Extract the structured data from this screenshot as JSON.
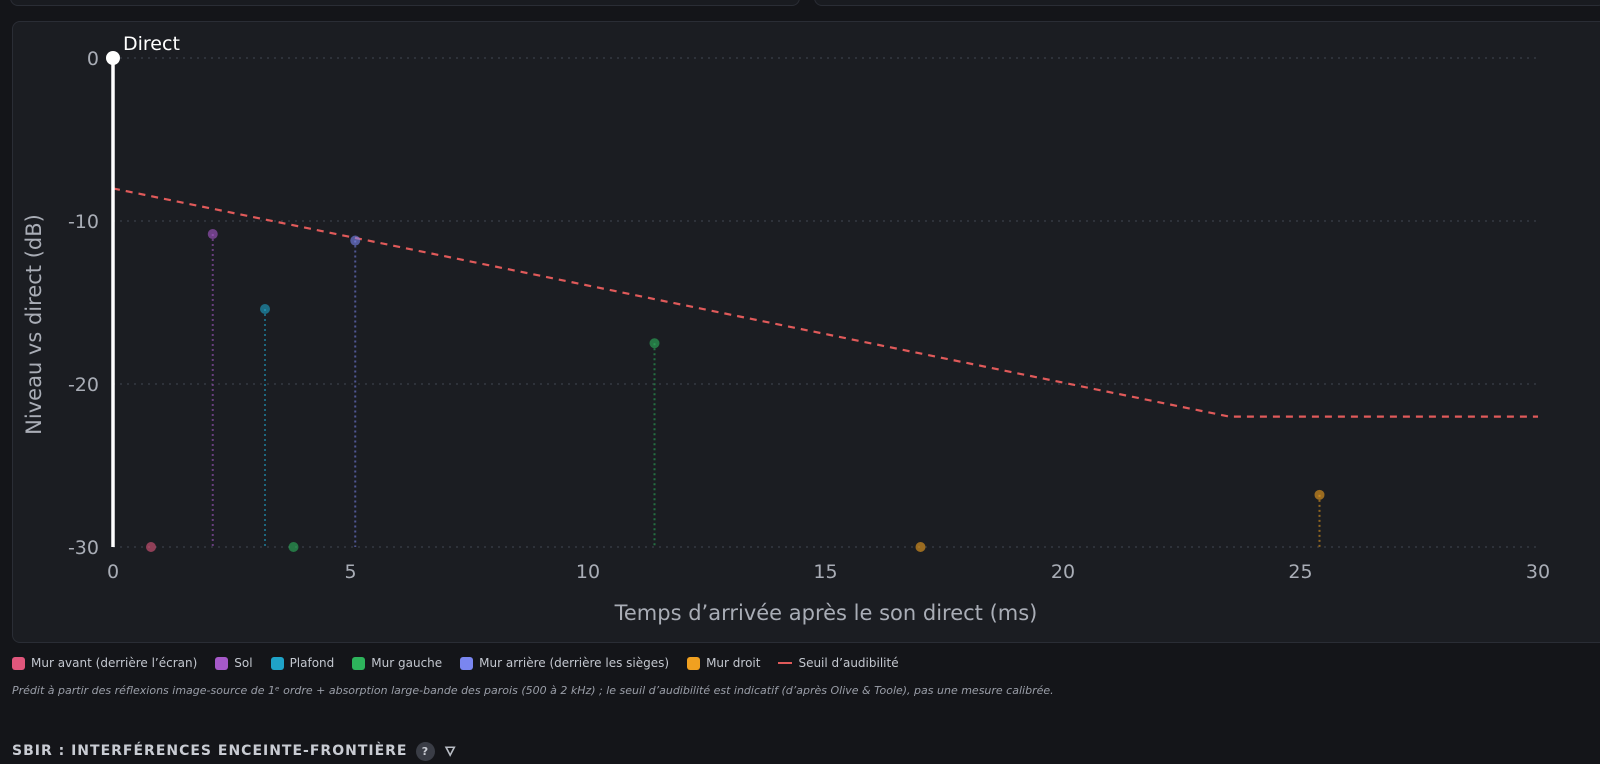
{
  "chart_data": {
    "type": "scatter",
    "xlabel": "Temps d’arrivée après le son direct (ms)",
    "ylabel": "Niveau vs direct (dB)",
    "xlim": [
      0,
      30
    ],
    "ylim": [
      -30,
      0
    ],
    "x_ticks": [
      "0",
      "5",
      "10",
      "15",
      "20",
      "25",
      "30"
    ],
    "y_ticks": [
      "0",
      "-10",
      "-20",
      "-30"
    ],
    "grid": true,
    "legend_position": "bottom-left",
    "direct": {
      "label": "Direct",
      "x": 0,
      "y": 0,
      "color": "#ffffff"
    },
    "series": [
      {
        "name": "Mur avant (derrière l’écran)",
        "color": "#e0567c",
        "points": [
          {
            "x": 0.8,
            "y": -30
          }
        ]
      },
      {
        "name": "Sol",
        "color": "#a659c9",
        "points": [
          {
            "x": 2.1,
            "y": -10.8
          }
        ]
      },
      {
        "name": "Plafond",
        "color": "#1fa3c8",
        "points": [
          {
            "x": 3.2,
            "y": -15.4
          }
        ]
      },
      {
        "name": "Mur gauche",
        "color": "#2db35b",
        "points": [
          {
            "x": 3.8,
            "y": -30
          },
          {
            "x": 11.4,
            "y": -17.5
          }
        ]
      },
      {
        "name": "Mur arrière (derrière les sièges)",
        "color": "#7a86f0",
        "points": [
          {
            "x": 5.1,
            "y": -11.2
          }
        ]
      },
      {
        "name": "Mur droit",
        "color": "#f0a020",
        "points": [
          {
            "x": 17.0,
            "y": -30
          },
          {
            "x": 25.4,
            "y": -26.8
          }
        ]
      }
    ],
    "threshold": {
      "name": "Seuil d’audibilité",
      "color": "#e05a5a",
      "x": [
        0,
        23.5,
        30
      ],
      "y": [
        -8,
        -22,
        -22
      ]
    }
  },
  "footnote": "Prédit à partir des réflexions image-source de 1ᵉ ordre + absorption large-bande des parois (500 à 2 kHz) ; le seuil d’audibilité est indicatif (d’après Olive & Toole), pas une mesure calibrée.",
  "section": {
    "title": "SBIR : INTERFÉRENCES ENCEINTE-FRONTIÈRE",
    "help_label": "?",
    "flask_icon": "🜄"
  }
}
